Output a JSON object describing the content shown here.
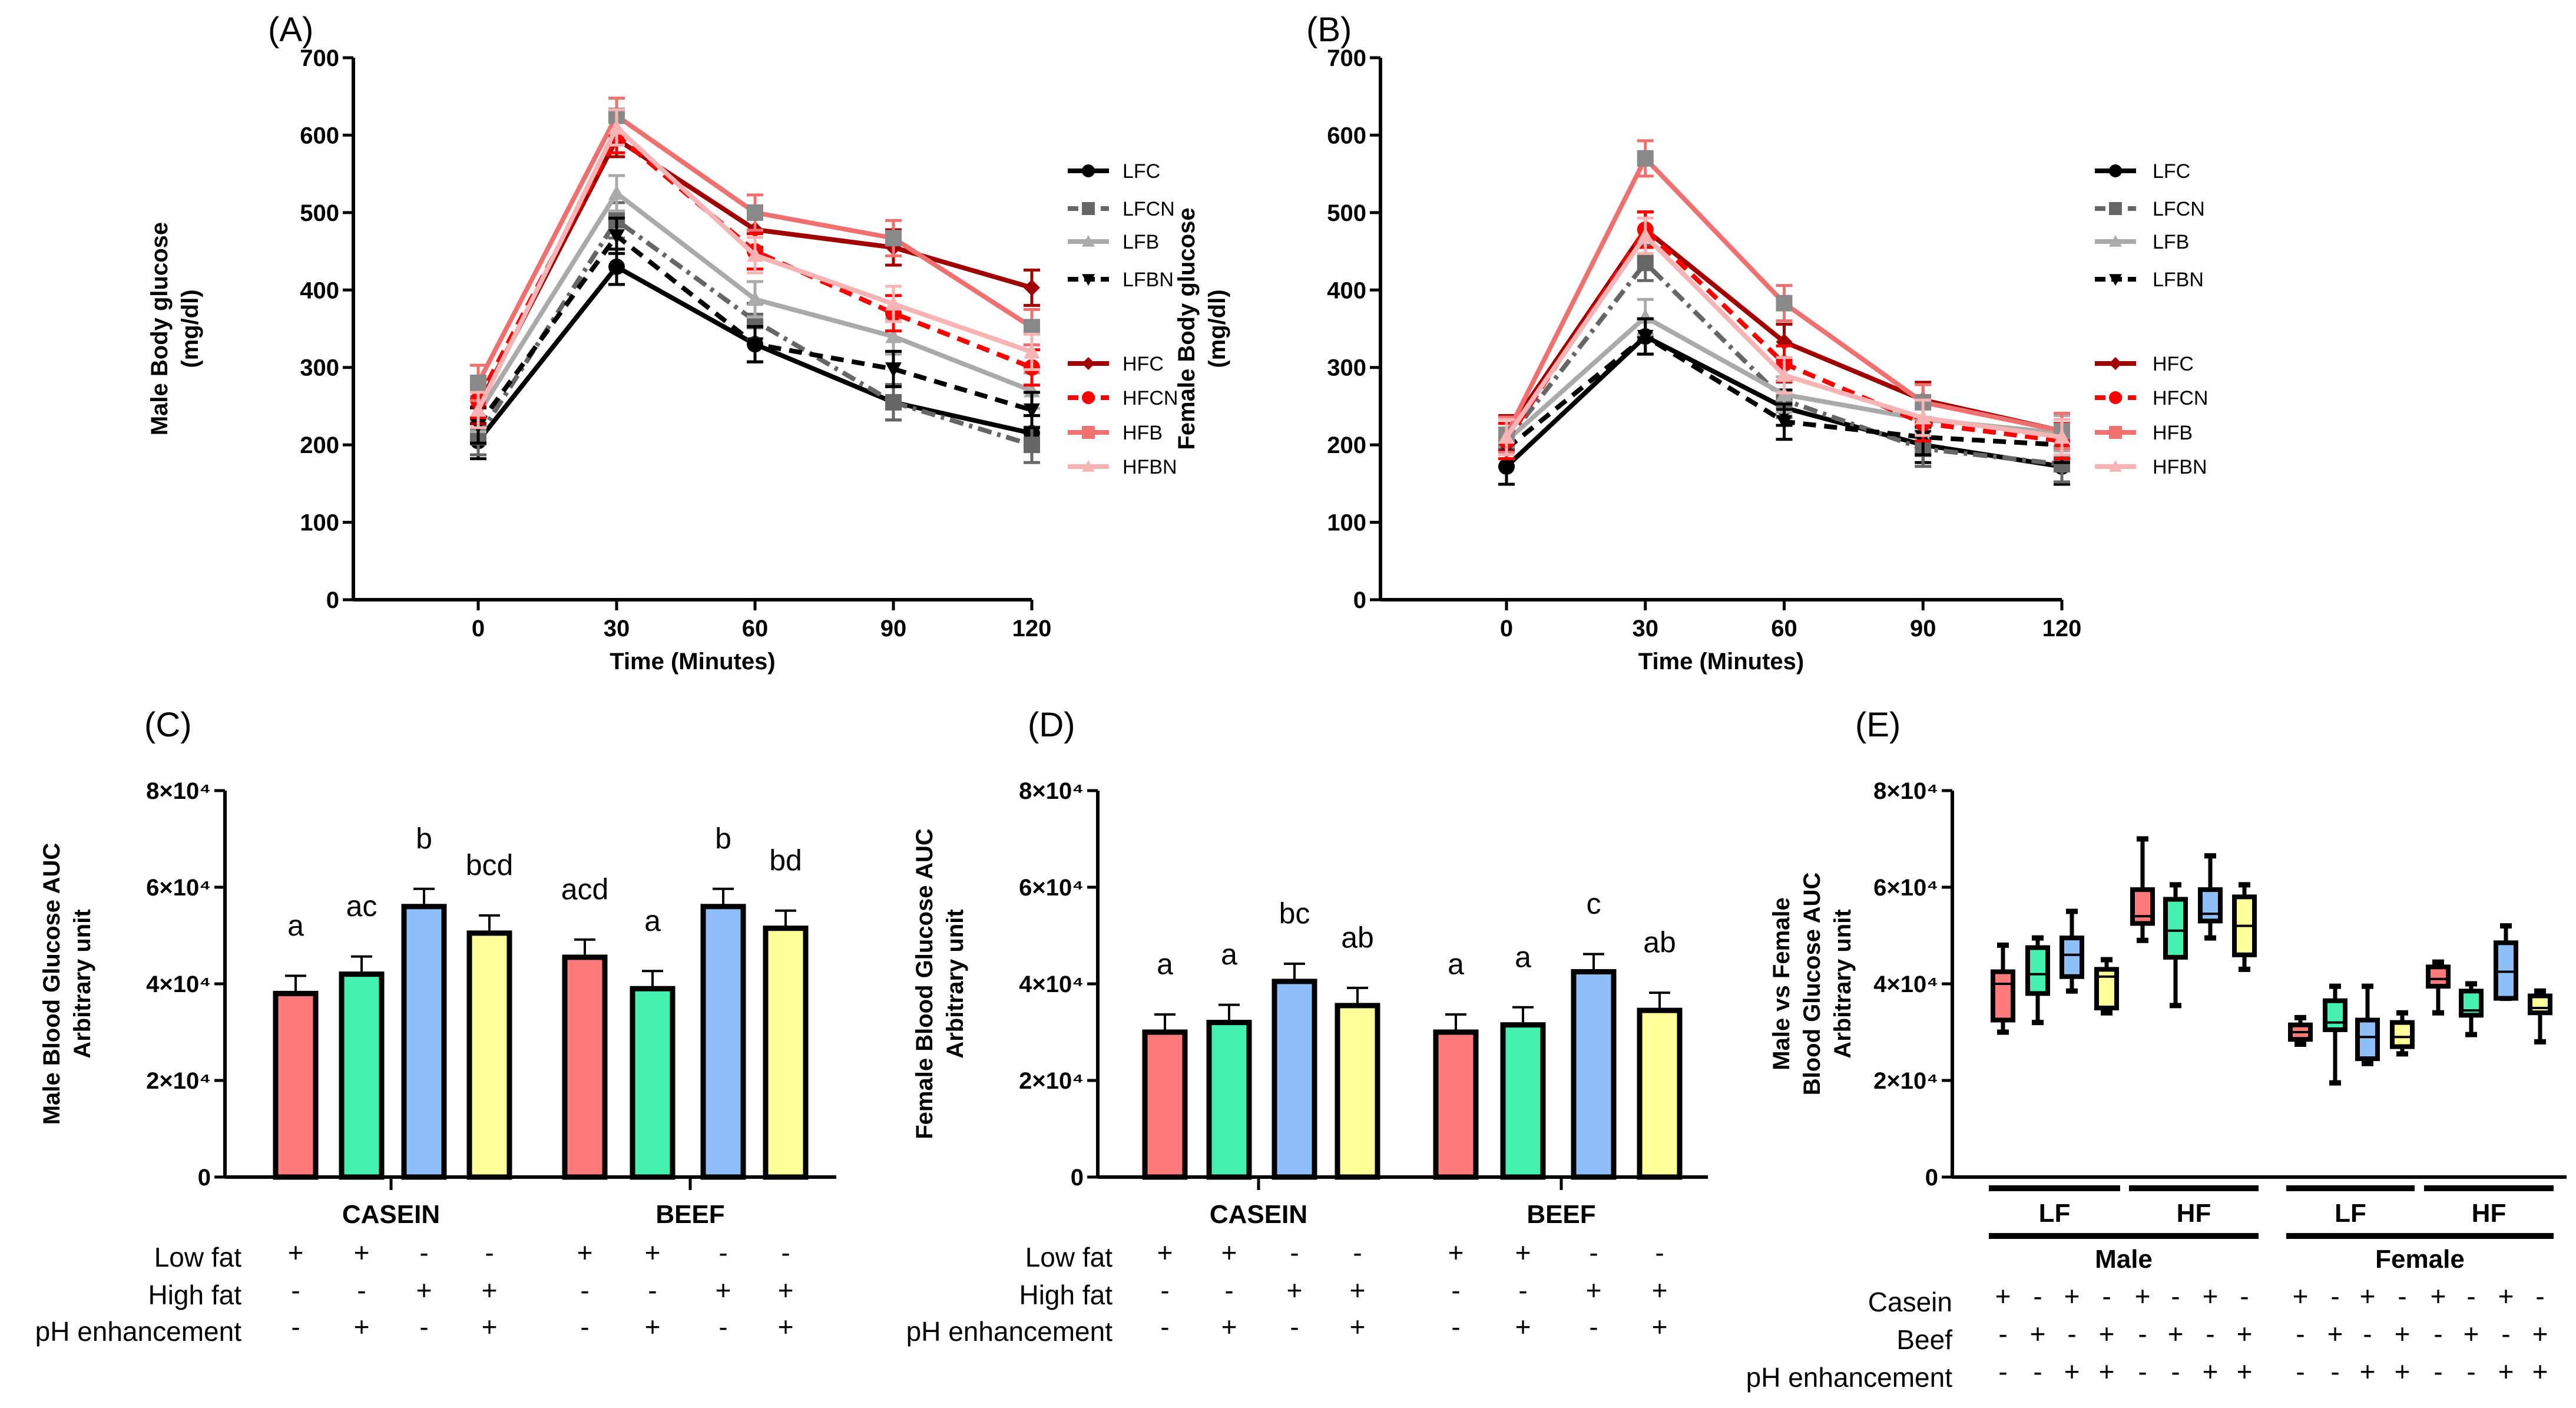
{
  "chart_data": [
    {
      "panel": "(A)",
      "type": "line",
      "xlabel": "Time (Minutes)",
      "ylabel": [
        "Male Body glucose",
        "(mg/dl)"
      ],
      "x": [
        0,
        30,
        60,
        90,
        120
      ],
      "xticks": [
        "0",
        "30",
        "60",
        "90",
        "120"
      ],
      "ylim": [
        0,
        700
      ],
      "yticks": [
        "0",
        "100",
        "200",
        "300",
        "400",
        "500",
        "600",
        "700"
      ],
      "legend_placement": "right",
      "series": [
        {
          "name": "LFC",
          "values": [
            205,
            430,
            330,
            255,
            215
          ],
          "color": "#000000",
          "dash": "solid",
          "marker": "circle"
        },
        {
          "name": "LFCN",
          "values": [
            210,
            490,
            360,
            255,
            200
          ],
          "color": "#666666",
          "dash": "dashdot",
          "marker": "square"
        },
        {
          "name": "LFB",
          "values": [
            240,
            525,
            388,
            340,
            270
          ],
          "color": "#aaaaaa",
          "dash": "solid",
          "marker": "triangle"
        },
        {
          "name": "LFBN",
          "values": [
            225,
            470,
            330,
            298,
            245
          ],
          "color": "#000000",
          "dash": "dashed",
          "marker": "triangle-down"
        },
        {
          "name": "HFC",
          "values": [
            250,
            595,
            478,
            455,
            403
          ],
          "color": "#a00000",
          "dash": "solid",
          "marker": "diamond"
        },
        {
          "name": "HFCN",
          "values": [
            258,
            600,
            450,
            370,
            300
          ],
          "color": "#ff0000",
          "dash": "dashed",
          "marker": "circle"
        },
        {
          "name": "HFB",
          "values": [
            280,
            625,
            500,
            467,
            352
          ],
          "color": "#f07070",
          "dash": "solid",
          "marker": "square"
        },
        {
          "name": "HFBN",
          "values": [
            245,
            610,
            445,
            382,
            320
          ],
          "color": "#f8b4b4",
          "dash": "solid",
          "marker": "triangle"
        }
      ]
    },
    {
      "panel": "(B)",
      "type": "line",
      "xlabel": "Time (Minutes)",
      "ylabel": [
        "Female Body glucose",
        "(mg/dl)"
      ],
      "x": [
        0,
        30,
        60,
        90,
        120
      ],
      "xticks": [
        "0",
        "30",
        "60",
        "90",
        "120"
      ],
      "ylim": [
        0,
        700
      ],
      "yticks": [
        "0",
        "100",
        "200",
        "300",
        "400",
        "500",
        "600",
        "700"
      ],
      "legend_placement": "right",
      "series": [
        {
          "name": "LFC",
          "values": [
            172,
            340,
            248,
            200,
            172
          ],
          "color": "#000000",
          "dash": "solid",
          "marker": "circle"
        },
        {
          "name": "LFCN",
          "values": [
            205,
            435,
            258,
            195,
            175
          ],
          "color": "#666666",
          "dash": "dashdot",
          "marker": "square"
        },
        {
          "name": "LFB",
          "values": [
            205,
            365,
            265,
            233,
            215
          ],
          "color": "#aaaaaa",
          "dash": "solid",
          "marker": "triangle"
        },
        {
          "name": "LFBN",
          "values": [
            195,
            340,
            230,
            210,
            200
          ],
          "color": "#000000",
          "dash": "dashed",
          "marker": "triangle-down"
        },
        {
          "name": "HFC",
          "values": [
            215,
            478,
            333,
            258,
            218
          ],
          "color": "#a00000",
          "dash": "solid",
          "marker": "diamond"
        },
        {
          "name": "HFCN",
          "values": [
            205,
            478,
            305,
            228,
            205
          ],
          "color": "#ff0000",
          "dash": "dashed",
          "marker": "circle"
        },
        {
          "name": "HFB",
          "values": [
            213,
            570,
            383,
            255,
            218
          ],
          "color": "#f07070",
          "dash": "solid",
          "marker": "square"
        },
        {
          "name": "HFBN",
          "values": [
            210,
            470,
            290,
            235,
            210
          ],
          "color": "#f8b4b4",
          "dash": "solid",
          "marker": "triangle"
        }
      ]
    },
    {
      "panel": "(C)",
      "type": "bar",
      "ylabel": [
        "Male Blood Glucose AUC",
        "Arbitrary unit"
      ],
      "ylim": [
        0,
        80000
      ],
      "yticks": [
        "0",
        "2×10⁴",
        "4×10⁴",
        "6×10⁴",
        "8×10⁴"
      ],
      "groups": [
        "CASEIN",
        "BEEF"
      ],
      "values": [
        38000,
        42000,
        56000,
        50500,
        45500,
        39000,
        56000,
        51500
      ],
      "letters": [
        "a",
        "ac",
        "b",
        "bcd",
        "acd",
        "a",
        "b",
        "bd"
      ],
      "colors": [
        "#ff7b7b",
        "#45f0b0",
        "#8fbff8",
        "#ffff9a",
        "#ff7b7b",
        "#45f0b0",
        "#8fbff8",
        "#ffff9a"
      ],
      "rows": [
        {
          "label": "Low fat",
          "signs": [
            "+",
            "+",
            "-",
            "-",
            "+",
            "+",
            "-",
            "-"
          ]
        },
        {
          "label": "High fat",
          "signs": [
            "-",
            "-",
            "+",
            "+",
            "-",
            "-",
            "+",
            "+"
          ]
        },
        {
          "label": "pH enhancement",
          "signs": [
            "-",
            "+",
            "-",
            "+",
            "-",
            "+",
            "-",
            "+"
          ]
        }
      ]
    },
    {
      "panel": "(D)",
      "type": "bar",
      "ylabel": [
        "Female Blood Glucose AUC",
        "Arbitrary unit"
      ],
      "ylim": [
        0,
        80000
      ],
      "yticks": [
        "0",
        "2×10⁴",
        "4×10⁴",
        "6×10⁴",
        "8×10⁴"
      ],
      "groups": [
        "CASEIN",
        "BEEF"
      ],
      "values": [
        30000,
        32000,
        40500,
        35500,
        30000,
        31500,
        42500,
        34500
      ],
      "letters": [
        "a",
        "a",
        "bc",
        "ab",
        "a",
        "a",
        "c",
        "ab"
      ],
      "colors": [
        "#ff7b7b",
        "#45f0b0",
        "#8fbff8",
        "#ffff9a",
        "#ff7b7b",
        "#45f0b0",
        "#8fbff8",
        "#ffff9a"
      ],
      "rows": [
        {
          "label": "Low fat",
          "signs": [
            "+",
            "+",
            "-",
            "-",
            "+",
            "+",
            "-",
            "-"
          ]
        },
        {
          "label": "High fat",
          "signs": [
            "-",
            "-",
            "+",
            "+",
            "-",
            "-",
            "+",
            "+"
          ]
        },
        {
          "label": "pH enhancement",
          "signs": [
            "-",
            "+",
            "-",
            "+",
            "-",
            "+",
            "-",
            "+"
          ]
        }
      ]
    },
    {
      "panel": "(E)",
      "type": "box",
      "ylabel": [
        "Male vs Female",
        "Blood Glucose AUC",
        "Arbitrary unit"
      ],
      "ylim": [
        0,
        80000
      ],
      "yticks": [
        "0",
        "2×10⁴",
        "4×10⁴",
        "6×10⁴",
        "8×10⁴"
      ],
      "fat_groups": [
        "LF",
        "HF",
        "LF",
        "HF"
      ],
      "sex_groups": [
        "Male",
        "Female"
      ],
      "boxes": [
        [
          30000,
          32500,
          40000,
          42500,
          48000
        ],
        [
          32000,
          38000,
          42000,
          47500,
          49500
        ],
        [
          38500,
          41500,
          46000,
          49500,
          55000
        ],
        [
          34000,
          35000,
          41500,
          43000,
          45000
        ],
        [
          49000,
          52500,
          54000,
          59500,
          70000
        ],
        [
          35500,
          45500,
          51000,
          57500,
          60500
        ],
        [
          49500,
          53000,
          54500,
          59500,
          66500
        ],
        [
          43000,
          46000,
          52000,
          58000,
          60500
        ],
        [
          27500,
          28500,
          30000,
          31500,
          33000
        ],
        [
          19500,
          30500,
          32000,
          36500,
          39500
        ],
        [
          23500,
          24500,
          29000,
          32500,
          39500
        ],
        [
          25500,
          27000,
          29000,
          32000,
          34000
        ],
        [
          34000,
          39500,
          41000,
          43500,
          44500
        ],
        [
          29500,
          33500,
          34500,
          38500,
          40000
        ],
        [
          37000,
          37000,
          42500,
          48500,
          52000
        ],
        [
          28000,
          34000,
          35000,
          37500,
          38500
        ]
      ],
      "box_stats": "min, q1, median, q3, max",
      "colors": [
        "#ff7b7b",
        "#45f0b0",
        "#8fbff8",
        "#ffff9a"
      ],
      "rows": [
        {
          "label": "Casein",
          "signs": [
            "+",
            "-",
            "+",
            "-",
            "+",
            "-",
            "+",
            "-",
            "+",
            "-",
            "+",
            "-",
            "+",
            "-",
            "+",
            "-"
          ]
        },
        {
          "label": "Beef",
          "signs": [
            "-",
            "+",
            "-",
            "+",
            "-",
            "+",
            "-",
            "+",
            "-",
            "+",
            "-",
            "+",
            "-",
            "+",
            "-",
            "+"
          ]
        },
        {
          "label": "pH enhancement",
          "signs": [
            "-",
            "-",
            "+",
            "+",
            "-",
            "-",
            "+",
            "+",
            "-",
            "-",
            "+",
            "+",
            "-",
            "-",
            "+",
            "+"
          ]
        }
      ]
    }
  ]
}
